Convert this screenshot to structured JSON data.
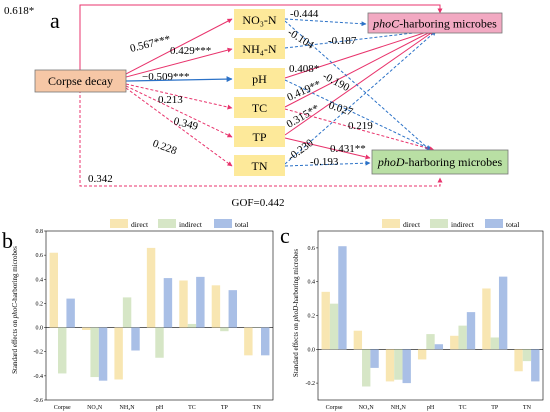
{
  "colors": {
    "corpse_box": "#f6c7a6",
    "var_box": "#fde99a",
    "phoC_box": "#f2a9c2",
    "phoD_box": "#b9dfa4",
    "positive_arrow": "#e8336c",
    "negative_arrow": "#2c72c7",
    "direct": "#f8e6b2",
    "indirect": "#d6e6c6",
    "total": "#a9bfe6"
  },
  "diagram": {
    "panel_label": "a",
    "corpse": "Corpse decay",
    "variables": {
      "no3": "NO₃-N",
      "nh4": "NH₄-N",
      "ph": "pH",
      "tc": "TC",
      "tp": "TP",
      "tn": "TN"
    },
    "phoC_italic": "phoC",
    "phoC_rest": "-harboring microbes",
    "phoD_italic": "phoD",
    "phoD_rest": "-harboring microbes",
    "gof": "GOF=0.442",
    "coefficients": {
      "corpse_phoC": "0.618*",
      "corpse_no3": "0.567***",
      "corpse_nh4": "0.429***",
      "corpse_ph": "−0.509***",
      "corpse_tc": "0.213",
      "corpse_tp": "0.349",
      "corpse_tn": "0.228",
      "corpse_phoD": "0.342",
      "no3_phoC": "-0.444",
      "no3_phoD": "-0.104",
      "nh4_phoC": "-0.187",
      "ph_phoC": "0.408*",
      "ph_phoD": "-0.190",
      "tc_phoC": "0.419**",
      "tc_phoD": "0.027",
      "tp_phoC": "0.315**",
      "tp_phoD": "0.219",
      "tp_phoD_2": "0.431**",
      "tn_phoC": "-0.230",
      "tn_phoD": "-0.193"
    }
  },
  "panel_b": {
    "label": "b"
  },
  "panel_c": {
    "label": "c"
  },
  "chart_data": [
    {
      "type": "bar",
      "ylabel_italic": "phoC",
      "ylabel_prefix": "Standard effects on ",
      "ylabel_suffix": "-harboring microbes",
      "ylim": [
        -0.6,
        0.8
      ],
      "yticks": [
        "-0.6",
        "-0.4",
        "-0.2",
        "0.0",
        "0.2",
        "0.4",
        "0.6",
        "0.8"
      ],
      "categories": [
        "Corpse",
        "NO₃N",
        "NH₄N",
        "pH",
        "TC",
        "TP",
        "TN"
      ],
      "legend": {
        "direct": "direct",
        "indirect": "indirect",
        "total": "total"
      },
      "series": [
        {
          "name": "direct",
          "values": [
            0.62,
            -0.02,
            -0.43,
            0.66,
            0.39,
            0.35,
            -0.23
          ]
        },
        {
          "name": "indirect",
          "values": [
            -0.38,
            -0.41,
            0.25,
            -0.25,
            0.03,
            -0.03,
            0.0
          ]
        },
        {
          "name": "total",
          "values": [
            0.24,
            -0.44,
            -0.19,
            0.41,
            0.42,
            0.31,
            -0.23
          ]
        }
      ]
    },
    {
      "type": "bar",
      "ylabel_italic": "phoD",
      "ylabel_prefix": "Standard effects on ",
      "ylabel_suffix": "-harboring microbes",
      "ylim": [
        -0.3,
        0.7
      ],
      "yticks": [
        "-0.2",
        "0.0",
        "0.2",
        "0.4",
        "0.6"
      ],
      "categories": [
        "Corpse",
        "NO₃N",
        "NH₄N",
        "pH",
        "TC",
        "TP",
        "TN"
      ],
      "legend": {
        "direct": "direct",
        "indirect": "indirect",
        "total": "total"
      },
      "series": [
        {
          "name": "direct",
          "values": [
            0.34,
            0.11,
            -0.19,
            -0.06,
            0.08,
            0.36,
            -0.13
          ]
        },
        {
          "name": "indirect",
          "values": [
            0.27,
            -0.22,
            -0.18,
            0.09,
            0.14,
            0.07,
            -0.07
          ]
        },
        {
          "name": "total",
          "values": [
            0.61,
            -0.11,
            -0.2,
            0.03,
            0.22,
            0.43,
            -0.19
          ]
        }
      ]
    }
  ]
}
